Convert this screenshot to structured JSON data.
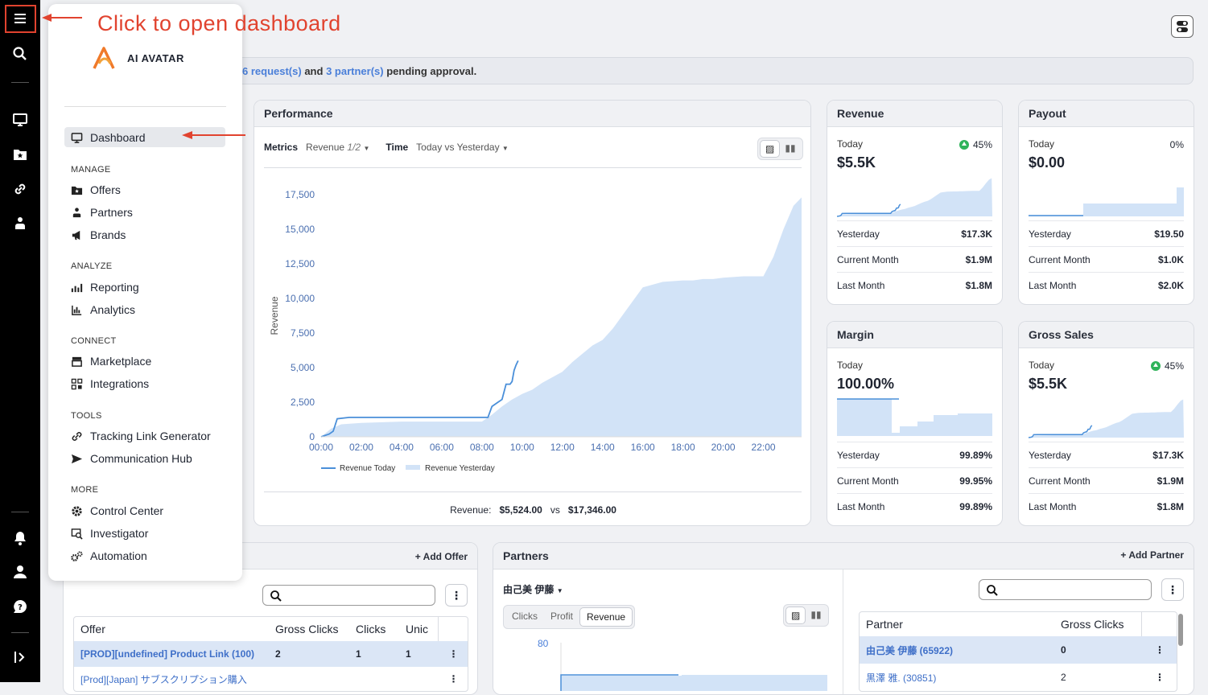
{
  "annotation": {
    "text": "Click to open dashboard"
  },
  "brand": {
    "name": "AI AVATAR"
  },
  "banner": {
    "req": "6 request(s)",
    "and": "and",
    "partners": "3 partner(s)",
    "tail": "pending approval."
  },
  "nav": {
    "dashboard": "Dashboard",
    "sections": {
      "manage": "MANAGE",
      "analyze": "ANALYZE",
      "connect": "CONNECT",
      "tools": "TOOLS",
      "more": "MORE"
    },
    "items": {
      "offers": "Offers",
      "partners": "Partners",
      "brands": "Brands",
      "reporting": "Reporting",
      "analytics": "Analytics",
      "marketplace": "Marketplace",
      "integrations": "Integrations",
      "tracking": "Tracking Link Generator",
      "comm": "Communication Hub",
      "control": "Control Center",
      "investigator": "Investigator",
      "automation": "Automation"
    }
  },
  "performance": {
    "title": "Performance",
    "metrics_label": "Metrics",
    "metrics_value": "Revenue",
    "metrics_count": "1/2",
    "time_label": "Time",
    "time_value": "Today vs Yesterday",
    "footer_label": "Revenue:",
    "today_total": "$5,524.00",
    "vs": "vs",
    "yesterday_total": "$17,346.00"
  },
  "chart_data": {
    "type": "area",
    "ylabel": "Revenue",
    "ylim": [
      0,
      17500
    ],
    "yticks": [
      "0",
      "2,500",
      "5,000",
      "7,500",
      "10,000",
      "12,500",
      "15,000",
      "17,500"
    ],
    "xticks": [
      "00:00",
      "02:00",
      "04:00",
      "06:00",
      "08:00",
      "10:00",
      "12:00",
      "14:00",
      "16:00",
      "18:00",
      "20:00",
      "22:00"
    ],
    "legend": [
      "Revenue Today",
      "Revenue Yesterday"
    ],
    "series": [
      {
        "name": "Revenue Today",
        "type": "line",
        "color": "#4a8fd9",
        "x": [
          0,
          0.4,
          0.6,
          0.8,
          1.4,
          2.0,
          4.0,
          6.0,
          8.3,
          8.5,
          8.8,
          9.0,
          9.2,
          9.4,
          9.5,
          9.6,
          9.7,
          9.8
        ],
        "y": [
          0,
          200,
          400,
          1300,
          1400,
          1400,
          1400,
          1400,
          1400,
          2200,
          2500,
          2700,
          3800,
          3800,
          4000,
          4800,
          5200,
          5500
        ]
      },
      {
        "name": "Revenue Yesterday",
        "type": "area",
        "color": "#d2e3f7",
        "x": [
          0,
          0.5,
          1.0,
          2.0,
          4.0,
          8.0,
          8.5,
          9.0,
          9.5,
          10.0,
          10.5,
          11.0,
          11.5,
          12.0,
          12.5,
          13.0,
          13.5,
          14.0,
          14.5,
          15.0,
          15.5,
          16.0,
          17.0,
          18.0,
          18.5,
          19.0,
          19.5,
          20.0,
          21.0,
          22.0,
          22.5,
          23.0,
          23.5,
          23.9
        ],
        "y": [
          0,
          600,
          900,
          1000,
          1100,
          1100,
          1600,
          2200,
          2700,
          3100,
          3400,
          3900,
          4300,
          4700,
          5400,
          6000,
          6600,
          7000,
          7800,
          8800,
          9800,
          10800,
          11200,
          11300,
          11300,
          11400,
          11400,
          11500,
          11600,
          11600,
          13000,
          15000,
          16700,
          17300
        ]
      }
    ]
  },
  "kpis": {
    "revenue": {
      "title": "Revenue",
      "today_label": "Today",
      "today": "$5.5K",
      "pct": "45%",
      "rows": [
        [
          "Yesterday",
          "$17.3K"
        ],
        [
          "Current Month",
          "$1.9M"
        ],
        [
          "Last Month",
          "$1.8M"
        ]
      ]
    },
    "payout": {
      "title": "Payout",
      "today_label": "Today",
      "today": "$0.00",
      "pct": "0%",
      "rows": [
        [
          "Yesterday",
          "$19.50"
        ],
        [
          "Current Month",
          "$1.0K"
        ],
        [
          "Last Month",
          "$2.0K"
        ]
      ]
    },
    "margin": {
      "title": "Margin",
      "today_label": "Today",
      "today": "100.00%",
      "pct": "",
      "rows": [
        [
          "Yesterday",
          "99.89%"
        ],
        [
          "Current Month",
          "99.95%"
        ],
        [
          "Last Month",
          "99.89%"
        ]
      ]
    },
    "gross": {
      "title": "Gross Sales",
      "today_label": "Today",
      "today": "$5.5K",
      "pct": "45%",
      "rows": [
        [
          "Yesterday",
          "$17.3K"
        ],
        [
          "Current Month",
          "$1.9M"
        ],
        [
          "Last Month",
          "$1.8M"
        ]
      ]
    }
  },
  "offers_card": {
    "add": "Add Offer",
    "columns": [
      "Offer",
      "Gross Clicks",
      "Clicks",
      "Unic"
    ],
    "rows": [
      [
        "[PROD][undefined] Product Link (100)",
        "2",
        "1",
        "1"
      ],
      [
        "[Prod][Japan] サブスクリプション購入",
        "",
        "",
        ""
      ]
    ]
  },
  "partners_card": {
    "title": "Partners",
    "add": "Add Partner",
    "selected": "由己美 伊藤",
    "tabs": [
      "Clicks",
      "Profit",
      "Revenue"
    ],
    "ytick": "80",
    "columns": [
      "Partner",
      "Gross Clicks"
    ],
    "rows": [
      [
        "由己美 伊藤 (65922)",
        "0"
      ],
      [
        "黒澤 雅. (30851)",
        "2"
      ]
    ]
  }
}
